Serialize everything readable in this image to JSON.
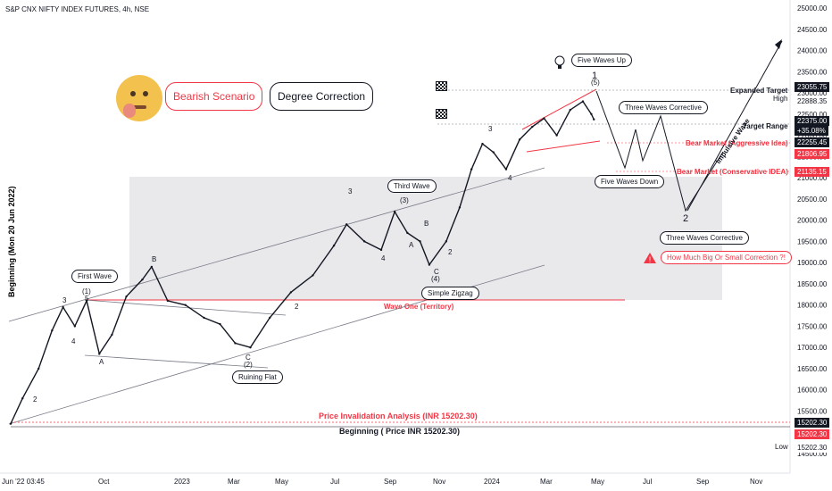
{
  "header": {
    "title": "S&P CNX NIFTY INDEX FUTURES, 4h, NSE"
  },
  "chart_data": {
    "type": "line",
    "x_ticks": [
      "Jun '22  03:45",
      "Oct",
      "2023",
      "Mar",
      "May",
      "Jul",
      "Sep",
      "Nov",
      "2024",
      "Mar",
      "May",
      "Jul",
      "Sep",
      "Nov"
    ],
    "y_ticks": [
      25000,
      24500,
      24000,
      23500,
      23000,
      22500,
      22000,
      21500,
      21000,
      20500,
      20000,
      19500,
      19000,
      18500,
      18000,
      17500,
      17000,
      16500,
      16000,
      15500,
      15000,
      14500
    ],
    "ylim": [
      14500,
      25000
    ],
    "series": [
      {
        "name": "price",
        "values": [
          {
            "x": "2022-06-17",
            "y": 15202
          },
          {
            "x": "2022-07-01",
            "y": 15800
          },
          {
            "x": "2022-07-20",
            "y": 16500
          },
          {
            "x": "2022-08-05",
            "y": 17400
          },
          {
            "x": "2022-08-18",
            "y": 17950
          },
          {
            "x": "2022-09-01",
            "y": 17500
          },
          {
            "x": "2022-09-15",
            "y": 18100
          },
          {
            "x": "2022-09-30",
            "y": 16850
          },
          {
            "x": "2022-10-15",
            "y": 17300
          },
          {
            "x": "2022-11-01",
            "y": 18200
          },
          {
            "x": "2022-11-20",
            "y": 18600
          },
          {
            "x": "2022-12-01",
            "y": 18900
          },
          {
            "x": "2022-12-20",
            "y": 18100
          },
          {
            "x": "2023-01-10",
            "y": 18000
          },
          {
            "x": "2023-02-01",
            "y": 17700
          },
          {
            "x": "2023-02-20",
            "y": 17550
          },
          {
            "x": "2023-03-10",
            "y": 17100
          },
          {
            "x": "2023-03-28",
            "y": 17000
          },
          {
            "x": "2023-04-20",
            "y": 17700
          },
          {
            "x": "2023-05-15",
            "y": 18300
          },
          {
            "x": "2023-06-10",
            "y": 18700
          },
          {
            "x": "2023-07-05",
            "y": 19400
          },
          {
            "x": "2023-07-20",
            "y": 19900
          },
          {
            "x": "2023-08-10",
            "y": 19500
          },
          {
            "x": "2023-08-30",
            "y": 19300
          },
          {
            "x": "2023-09-15",
            "y": 20200
          },
          {
            "x": "2023-09-30",
            "y": 19700
          },
          {
            "x": "2023-10-15",
            "y": 19500
          },
          {
            "x": "2023-10-26",
            "y": 18950
          },
          {
            "x": "2023-11-15",
            "y": 19500
          },
          {
            "x": "2023-12-01",
            "y": 20300
          },
          {
            "x": "2023-12-15",
            "y": 21200
          },
          {
            "x": "2023-12-28",
            "y": 21800
          },
          {
            "x": "2024-01-10",
            "y": 21600
          },
          {
            "x": "2024-01-25",
            "y": 21200
          },
          {
            "x": "2024-02-10",
            "y": 21900
          },
          {
            "x": "2024-02-25",
            "y": 22200
          },
          {
            "x": "2024-03-10",
            "y": 22400
          },
          {
            "x": "2024-03-25",
            "y": 22000
          },
          {
            "x": "2024-04-10",
            "y": 22600
          },
          {
            "x": "2024-04-25",
            "y": 22800
          },
          {
            "x": "2024-05-05",
            "y": 22500
          },
          {
            "x": "2024-05-08",
            "y": 22375
          }
        ]
      }
    ]
  },
  "annotations": {
    "boxes": [
      "Five Waves Up",
      "Three Waves Corrective",
      "Five Waves Down",
      "Three Waves Corrective",
      "Third Wave",
      "First Wave",
      "Simple Zigzag",
      "Ruining Flat"
    ],
    "bearish": "Bearish Scenario",
    "degree": "Degree Correction",
    "warning": "How Much Big Or Small Correction ?!",
    "expanded_target": "Expanded Target",
    "high": "High",
    "target_range": "Target Range",
    "bear_aggressive": "Bear Market (Aggressive Idea)",
    "bear_conservative": "Bear Market (Conservative IDEA)",
    "wave_one": "Wave One (Territory)",
    "invalidation": "Price Invalidation Analysis (INR 15202.30)",
    "beginning": "Beginning ( Price INR 15202.30)",
    "impulsive": "Impulsive Wave",
    "beginning_vertical": "Beginning (Mon 20 Jun 2022)",
    "low": "Low",
    "wave_labels": [
      "1",
      "2",
      "3",
      "4",
      "5",
      "A",
      "B",
      "C",
      "(1)",
      "(2)",
      "(3)",
      "(4)",
      "(5)"
    ]
  },
  "price_tags": [
    {
      "value": "23055.75",
      "color": "#131722"
    },
    {
      "value": "22888.35",
      "color": "#ffffff"
    },
    {
      "value": "22375.00",
      "color": "#131722"
    },
    {
      "value": "+35.08%",
      "color": "#131722"
    },
    {
      "value": "22255.45",
      "color": "#131722"
    },
    {
      "value": "21806.95",
      "color": "#f23645"
    },
    {
      "value": "21135.15",
      "color": "#f23645"
    },
    {
      "value": "15202.30",
      "color": "#131722"
    },
    {
      "value": "15202.30",
      "color": "#f23645"
    },
    {
      "value": "15202.30",
      "color": "#ffffff"
    }
  ],
  "colors": {
    "red": "#f23645",
    "dark": "#131722",
    "grid": "#e0e3eb",
    "zone": "#e9e9ec"
  }
}
